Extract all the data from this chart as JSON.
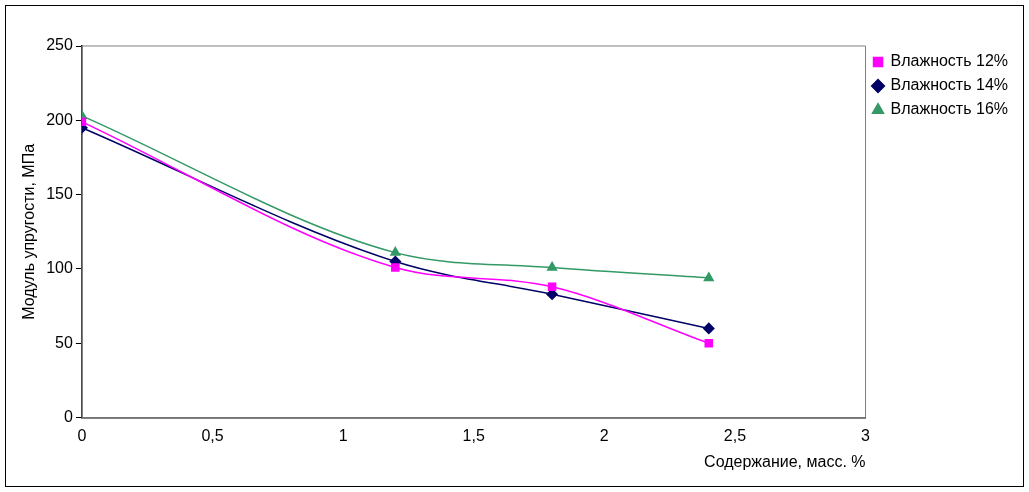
{
  "chart_data": {
    "type": "line",
    "xlabel": "Содержание, масс. %",
    "ylabel": "Модуль упругости, МПа",
    "xlim": [
      0,
      3
    ],
    "xticks": [
      0,
      {
        "value": 0.5,
        "label": "0,5"
      },
      1,
      {
        "value": 1.5,
        "label": "1,5"
      },
      2,
      {
        "value": 2.5,
        "label": "2,5"
      },
      3
    ],
    "ylim": [
      0,
      250
    ],
    "yticks": [
      0,
      50,
      100,
      150,
      200,
      250
    ],
    "x": [
      0,
      1.2,
      1.8,
      2.4
    ],
    "series": [
      {
        "name": "Влажность 12%",
        "color": "#ff00ff",
        "values": [
          199,
          101,
          88,
          50
        ],
        "marker": "square"
      },
      {
        "name": "Влажность 14%",
        "color": "#000066",
        "values": [
          195,
          105,
          83,
          60
        ],
        "marker": "diamond"
      },
      {
        "name": "Влажность 16%",
        "color": "#339966",
        "values": [
          203,
          111,
          101,
          94
        ],
        "marker": "triangle"
      }
    ],
    "legend": "top right",
    "grid": false
  }
}
